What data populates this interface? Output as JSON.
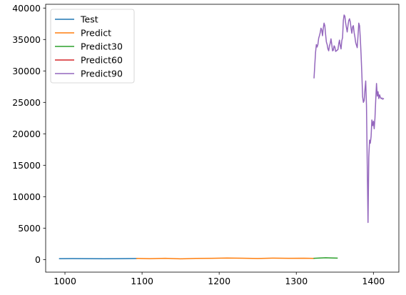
{
  "chart_data": {
    "type": "line",
    "title": "",
    "xlabel": "",
    "ylabel": "",
    "xlim": [
      975,
      1433
    ],
    "ylim": [
      -2000,
      40600
    ],
    "xticks": [
      1000,
      1100,
      1200,
      1300,
      1400
    ],
    "yticks": [
      0,
      5000,
      10000,
      15000,
      20000,
      25000,
      30000,
      35000,
      40000
    ],
    "grid": false,
    "legend_position": "upper-left",
    "series": [
      {
        "name": "Test",
        "color": "#1f77b4",
        "x": [
          993,
          1010,
          1030,
          1050,
          1070,
          1093
        ],
        "y": [
          150,
          160,
          140,
          130,
          150,
          170
        ]
      },
      {
        "name": "Predict",
        "color": "#ff7f0e",
        "x": [
          1093,
          1110,
          1130,
          1150,
          1170,
          1190,
          1210,
          1230,
          1250,
          1270,
          1290,
          1310,
          1323
        ],
        "y": [
          180,
          150,
          200,
          120,
          180,
          200,
          250,
          220,
          170,
          230,
          200,
          220,
          190
        ]
      },
      {
        "name": "Predict30",
        "color": "#2ca02c",
        "x": [
          1323,
          1330,
          1338,
          1345,
          1353
        ],
        "y": [
          200,
          250,
          280,
          260,
          230
        ]
      },
      {
        "name": "Predict60",
        "color": "#d62728",
        "x": [],
        "y": []
      },
      {
        "name": "Predict90",
        "color": "#9467bd",
        "x": [
          1323,
          1324,
          1325,
          1326,
          1327,
          1328,
          1329,
          1330,
          1331,
          1332,
          1333,
          1334,
          1335,
          1336,
          1337,
          1338,
          1339,
          1340,
          1341,
          1342,
          1343,
          1344,
          1345,
          1346,
          1347,
          1348,
          1349,
          1350,
          1351,
          1352,
          1353,
          1354,
          1355,
          1356,
          1357,
          1358,
          1359,
          1360,
          1361,
          1362,
          1363,
          1364,
          1365,
          1366,
          1367,
          1368,
          1369,
          1370,
          1371,
          1372,
          1373,
          1374,
          1375,
          1376,
          1377,
          1378,
          1379,
          1380,
          1381,
          1382,
          1383,
          1384,
          1385,
          1386,
          1387,
          1388,
          1389,
          1390,
          1391,
          1392,
          1393,
          1394,
          1395,
          1396,
          1397,
          1398,
          1399,
          1400,
          1401,
          1402,
          1403,
          1404,
          1405,
          1406,
          1407,
          1408,
          1409,
          1410,
          1411,
          1412,
          1413
        ],
        "y": [
          28900,
          31000,
          33000,
          34200,
          33800,
          34200,
          35200,
          35600,
          36100,
          36800,
          36500,
          35600,
          36800,
          37600,
          37200,
          35800,
          34600,
          34200,
          33500,
          33200,
          34000,
          34400,
          35100,
          34200,
          33200,
          33300,
          34000,
          33800,
          33100,
          33200,
          33300,
          33400,
          34300,
          34900,
          34000,
          33500,
          34800,
          35300,
          38000,
          38900,
          38700,
          37600,
          36900,
          36200,
          37200,
          38000,
          38300,
          37800,
          36800,
          36000,
          37000,
          37200,
          36100,
          35400,
          34500,
          34100,
          33700,
          35500,
          37600,
          37200,
          35200,
          32600,
          29500,
          25900,
          25000,
          25300,
          27000,
          28400,
          24500,
          15200,
          5900,
          16300,
          19000,
          18500,
          19600,
          22200,
          21300,
          22000,
          20800,
          22500,
          25400,
          28000,
          26000,
          26700,
          25600,
          26200,
          25800,
          25600,
          25700,
          25500,
          25600
        ]
      }
    ]
  }
}
